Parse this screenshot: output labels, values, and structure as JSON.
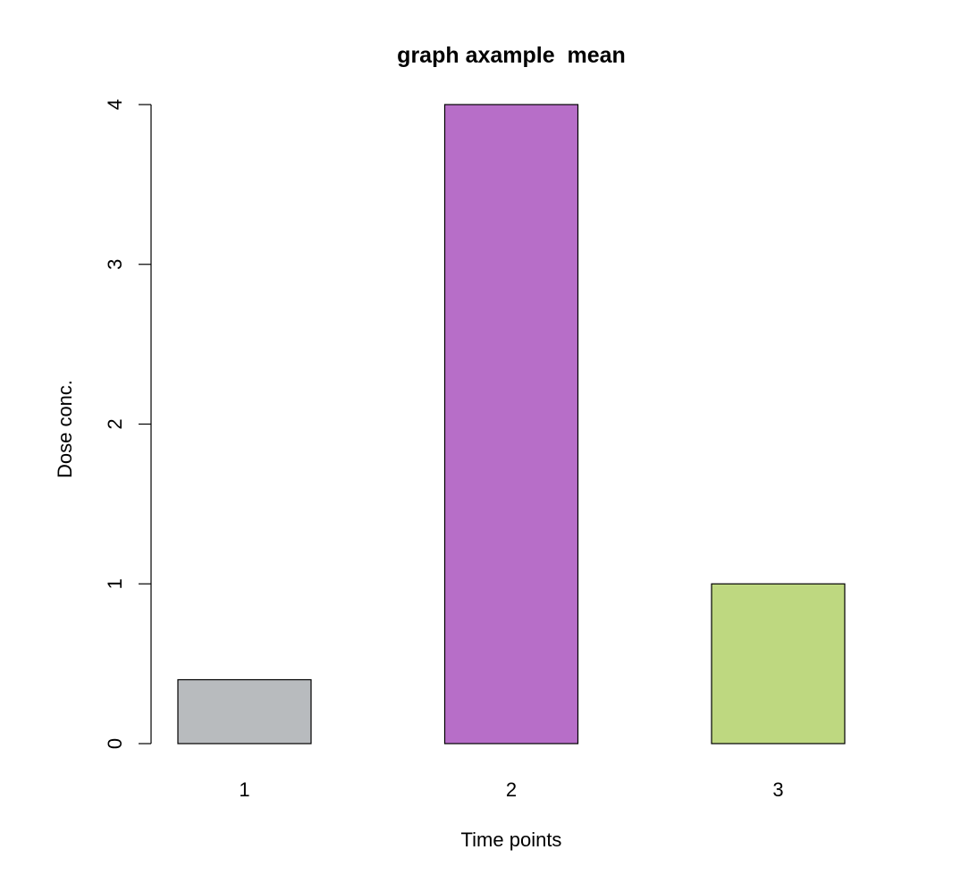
{
  "chart_data": {
    "type": "bar",
    "title": "graph axample  mean",
    "xlabel": "Time points",
    "ylabel": "Dose conc.",
    "categories": [
      "1",
      "2",
      "3"
    ],
    "values": [
      0.4,
      4,
      1
    ],
    "colors": [
      "#b8bbbe",
      "#b76ec8",
      "#bed880"
    ],
    "ylim": [
      0,
      4
    ],
    "yticks": [
      0,
      1,
      2,
      3,
      4
    ],
    "grid": false,
    "legend": "none"
  }
}
